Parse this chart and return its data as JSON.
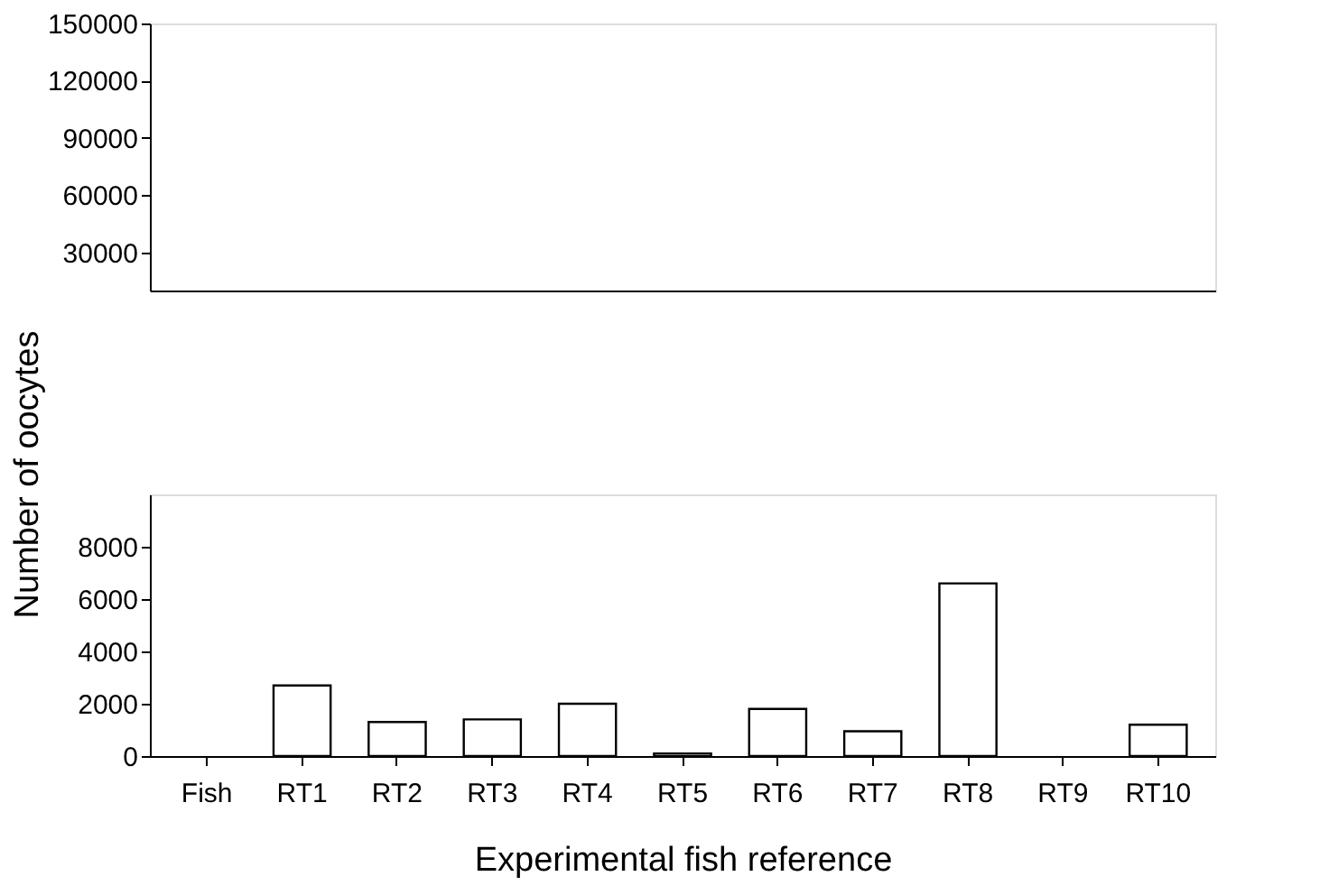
{
  "chart_data": [
    {
      "type": "bar",
      "categories": [
        null,
        null,
        null,
        null,
        null,
        null,
        null,
        null,
        null,
        null,
        null
      ],
      "values": [
        null,
        null,
        null,
        null,
        null,
        null,
        null,
        null,
        null,
        null,
        null
      ],
      "color": "#ffffff",
      "ylim": [
        10000,
        150000
      ],
      "yticks": [
        30000,
        60000,
        90000,
        120000,
        150000
      ],
      "tick_labels": "y"
    },
    {
      "type": "bar",
      "categories": [
        "Fish",
        "RT1",
        "RT2",
        "RT3",
        "RT4",
        "RT5",
        "RT6",
        "RT7",
        "RT8",
        "RT9",
        "RT10"
      ],
      "values": [
        0,
        2700,
        1300,
        1400,
        2000,
        100,
        1800,
        950,
        6600,
        0,
        1200
      ],
      "color": "#ffffff",
      "ylim": [
        0,
        10000
      ],
      "yticks": [
        0,
        2000,
        4000,
        6000,
        8000
      ],
      "xlabel": "Experimental fish reference",
      "ylabel": "Number of oocytes"
    }
  ]
}
